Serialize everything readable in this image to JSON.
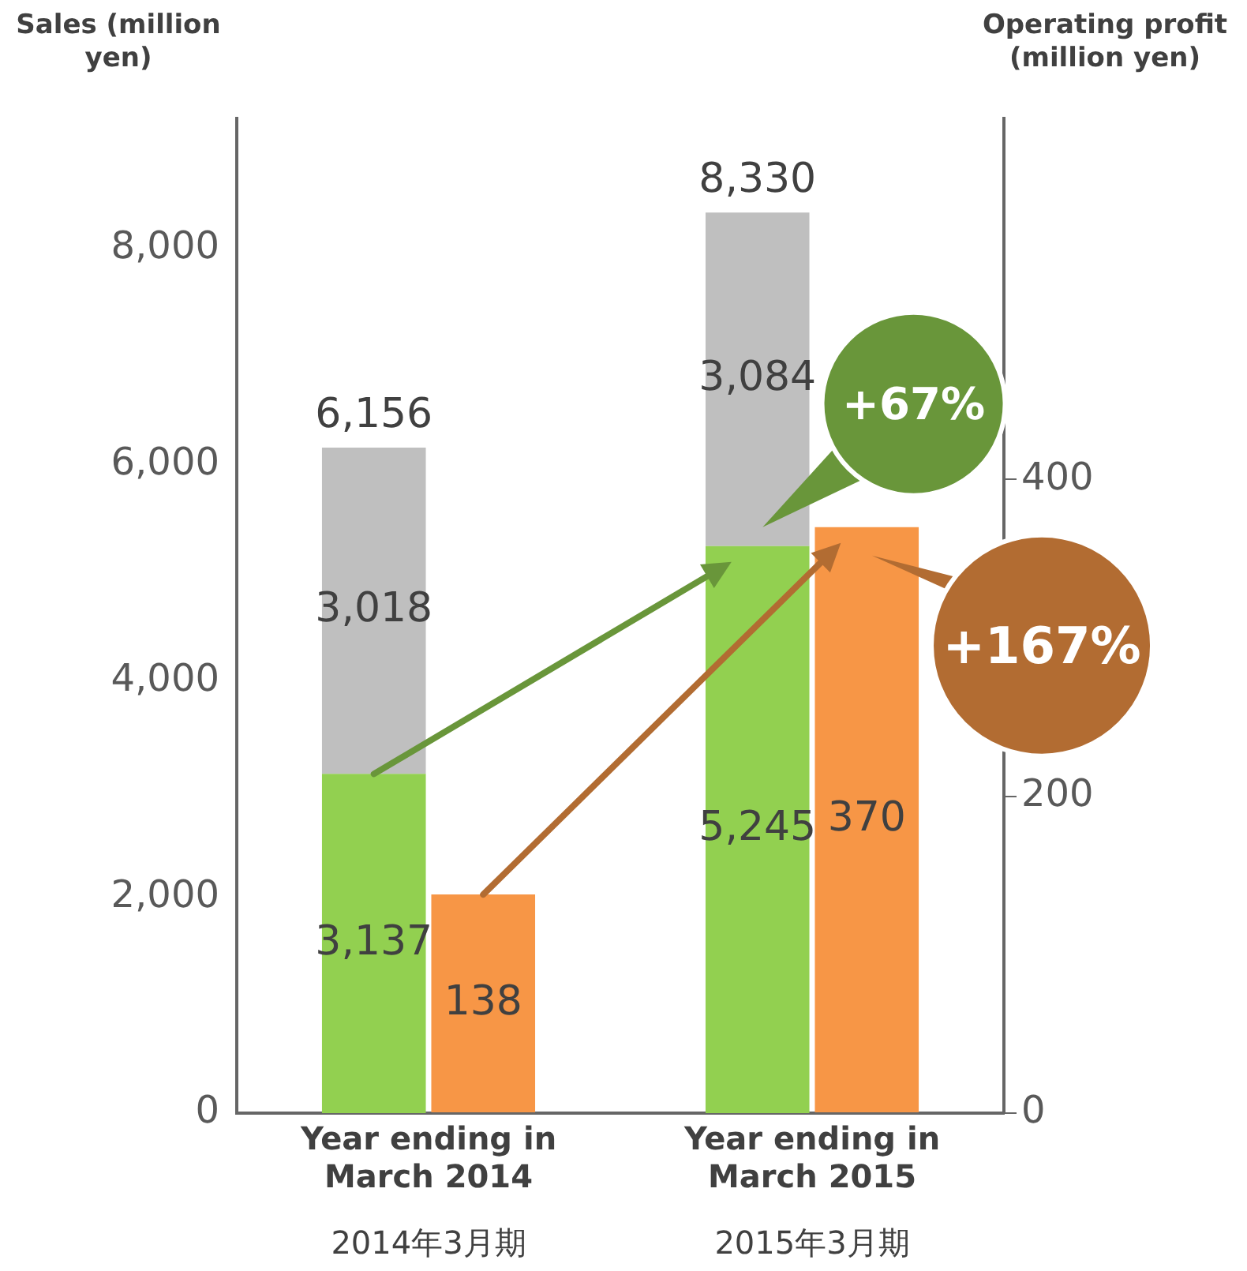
{
  "chart_data": {
    "type": "bar",
    "stacked": true,
    "ylabel": "Sales (million yen)",
    "y2label": "Operating profit (million yen)",
    "categories": [
      "Year ending in March 2014",
      "Year ending in March 2015"
    ],
    "series": [
      {
        "color": "#92d050",
        "values": [
          3137,
          5245
        ],
        "value_labels": [
          "3,137",
          "5,245"
        ]
      },
      {
        "color": "#bfbfbf",
        "values": [
          3018,
          3084
        ],
        "value_labels": [
          "3,018",
          "3,084"
        ]
      },
      {
        "color": "#f79646",
        "values": [
          138,
          370
        ],
        "value_labels": [
          "138",
          "370"
        ],
        "axis": "y2"
      }
    ],
    "totals": [
      "6,156",
      "8,330"
    ],
    "ylim": [
      0,
      9200
    ],
    "yticks": [
      {
        "value": 0,
        "label": "0"
      },
      {
        "value": 2000,
        "label": "2,000"
      },
      {
        "value": 4000,
        "label": "4,000"
      },
      {
        "value": 6000,
        "label": "6,000"
      },
      {
        "value": 8000,
        "label": "8,000"
      }
    ],
    "y2lim": [
      0,
      628
    ],
    "y2ticks": [
      0,
      200,
      400
    ],
    "grid": false,
    "legend": false,
    "annotations": [
      "+67%",
      "+167%",
      "2014年3月期",
      "2015年3月期"
    ]
  }
}
